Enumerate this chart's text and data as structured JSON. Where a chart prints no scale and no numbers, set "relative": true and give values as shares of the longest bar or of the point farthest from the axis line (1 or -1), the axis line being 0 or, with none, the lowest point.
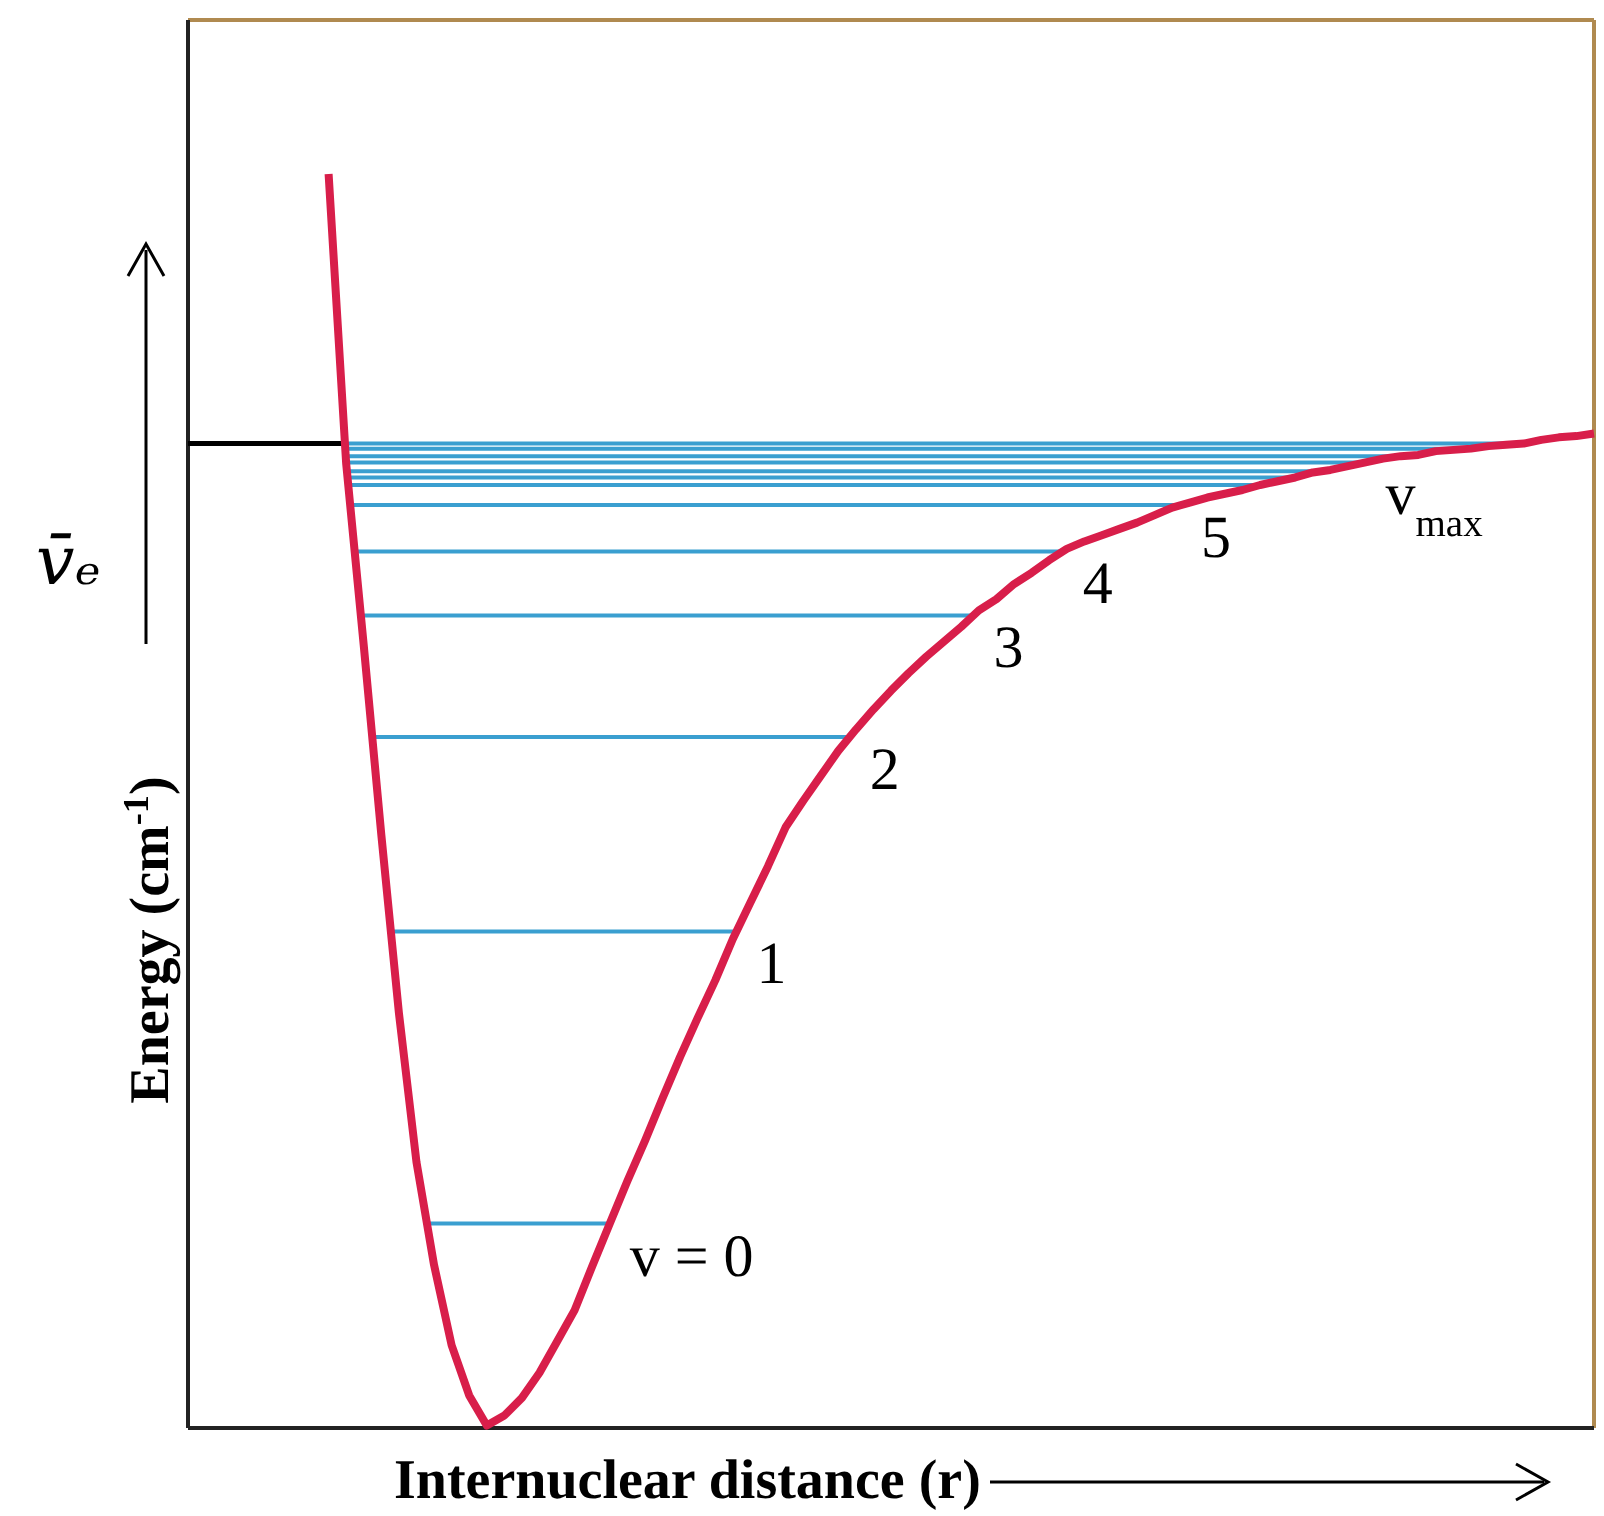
{
  "chart_data": {
    "type": "line",
    "relative": true,
    "xlabel": "Internuclear distance (r)",
    "ylabel": "Energy (cm$^{-1}$)",
    "marker": "none",
    "line_style": "solid",
    "categories": [
      null,
      null,
      null,
      null,
      null,
      null,
      null,
      null,
      null,
      null,
      null,
      null,
      null,
      null,
      null,
      null,
      null,
      null,
      null,
      null,
      null,
      null,
      null,
      null,
      null,
      null,
      null,
      null,
      null,
      null,
      null,
      null,
      null,
      null,
      null,
      null,
      null,
      null,
      null,
      null,
      null,
      null,
      null,
      null,
      null,
      null,
      null,
      null,
      null,
      null,
      null,
      null,
      null,
      null,
      null,
      null,
      null,
      null,
      null,
      null,
      null,
      null,
      null,
      null,
      null,
      null,
      null,
      null,
      null,
      null,
      null,
      null,
      null,
      null,
      null,
      null,
      null,
      null,
      null,
      null,
      null
    ],
    "series": [
      {
        "color": "#d81e4a",
        "values": [
          null,
          null,
          null,
          null,
          null,
          null,
          null,
          null,
          1,
          0.769,
          0.624,
          0.473,
          0.331,
          0.212,
          0.13,
          0.066,
          0.026,
          0.002,
          0.01,
          0.024,
          0.044,
          0.069,
          0.094,
          0.129,
          0.163,
          0.197,
          0.229,
          0.263,
          0.296,
          0.327,
          0.357,
          0.39,
          0.419,
          0.448,
          0.479,
          0.5,
          0.52,
          0.54,
          0.557,
          0.573,
          0.588,
          0.602,
          0.615,
          0.627,
          0.639,
          0.652,
          0.661,
          0.673,
          0.682,
          0.692,
          0.701,
          0.707,
          0.712,
          0.717,
          0.722,
          0.728,
          0.734,
          0.738,
          0.742,
          0.745,
          0.748,
          0.752,
          0.755,
          0.758,
          0.762,
          0.764,
          0.767,
          0.77,
          0.773,
          0.775,
          0.776,
          0.779,
          0.78,
          0.781,
          0.783,
          0.784,
          0.785,
          0.788,
          0.79,
          0.791,
          0.793
        ]
      }
    ],
    "ref_lines": [
      {
        "axis": "y",
        "value": 0.163,
        "color": "#3a9fd0"
      },
      {
        "axis": "y",
        "value": 0.396,
        "color": "#3a9fd0"
      },
      {
        "axis": "y",
        "value": 0.551,
        "color": "#3a9fd0"
      },
      {
        "axis": "y",
        "value": 0.648,
        "color": "#3a9fd0"
      },
      {
        "axis": "y",
        "value": 0.699,
        "color": "#3a9fd0"
      },
      {
        "axis": "y",
        "value": 0.736,
        "color": "#3a9fd0"
      },
      {
        "axis": "y",
        "value": 0.77,
        "color": "#3a9fd0"
      },
      {
        "axis": "y",
        "value": 0.752,
        "color": "#3a9fd0"
      },
      {
        "axis": "y",
        "value": 0.758,
        "color": "#3a9fd0"
      },
      {
        "axis": "y",
        "value": 0.763,
        "color": "#3a9fd0"
      },
      {
        "axis": "y",
        "value": 0.775,
        "color": "#3a9fd0"
      },
      {
        "axis": "y",
        "value": 0.781,
        "color": "#3a9fd0"
      },
      {
        "axis": "y",
        "value": 0.785,
        "color": "#3a9fd0"
      }
    ],
    "annotations": [
      "v̄ₑ",
      "v = 0",
      "1",
      "2",
      "3",
      "4",
      "5",
      "v$_{max}$"
    ]
  }
}
